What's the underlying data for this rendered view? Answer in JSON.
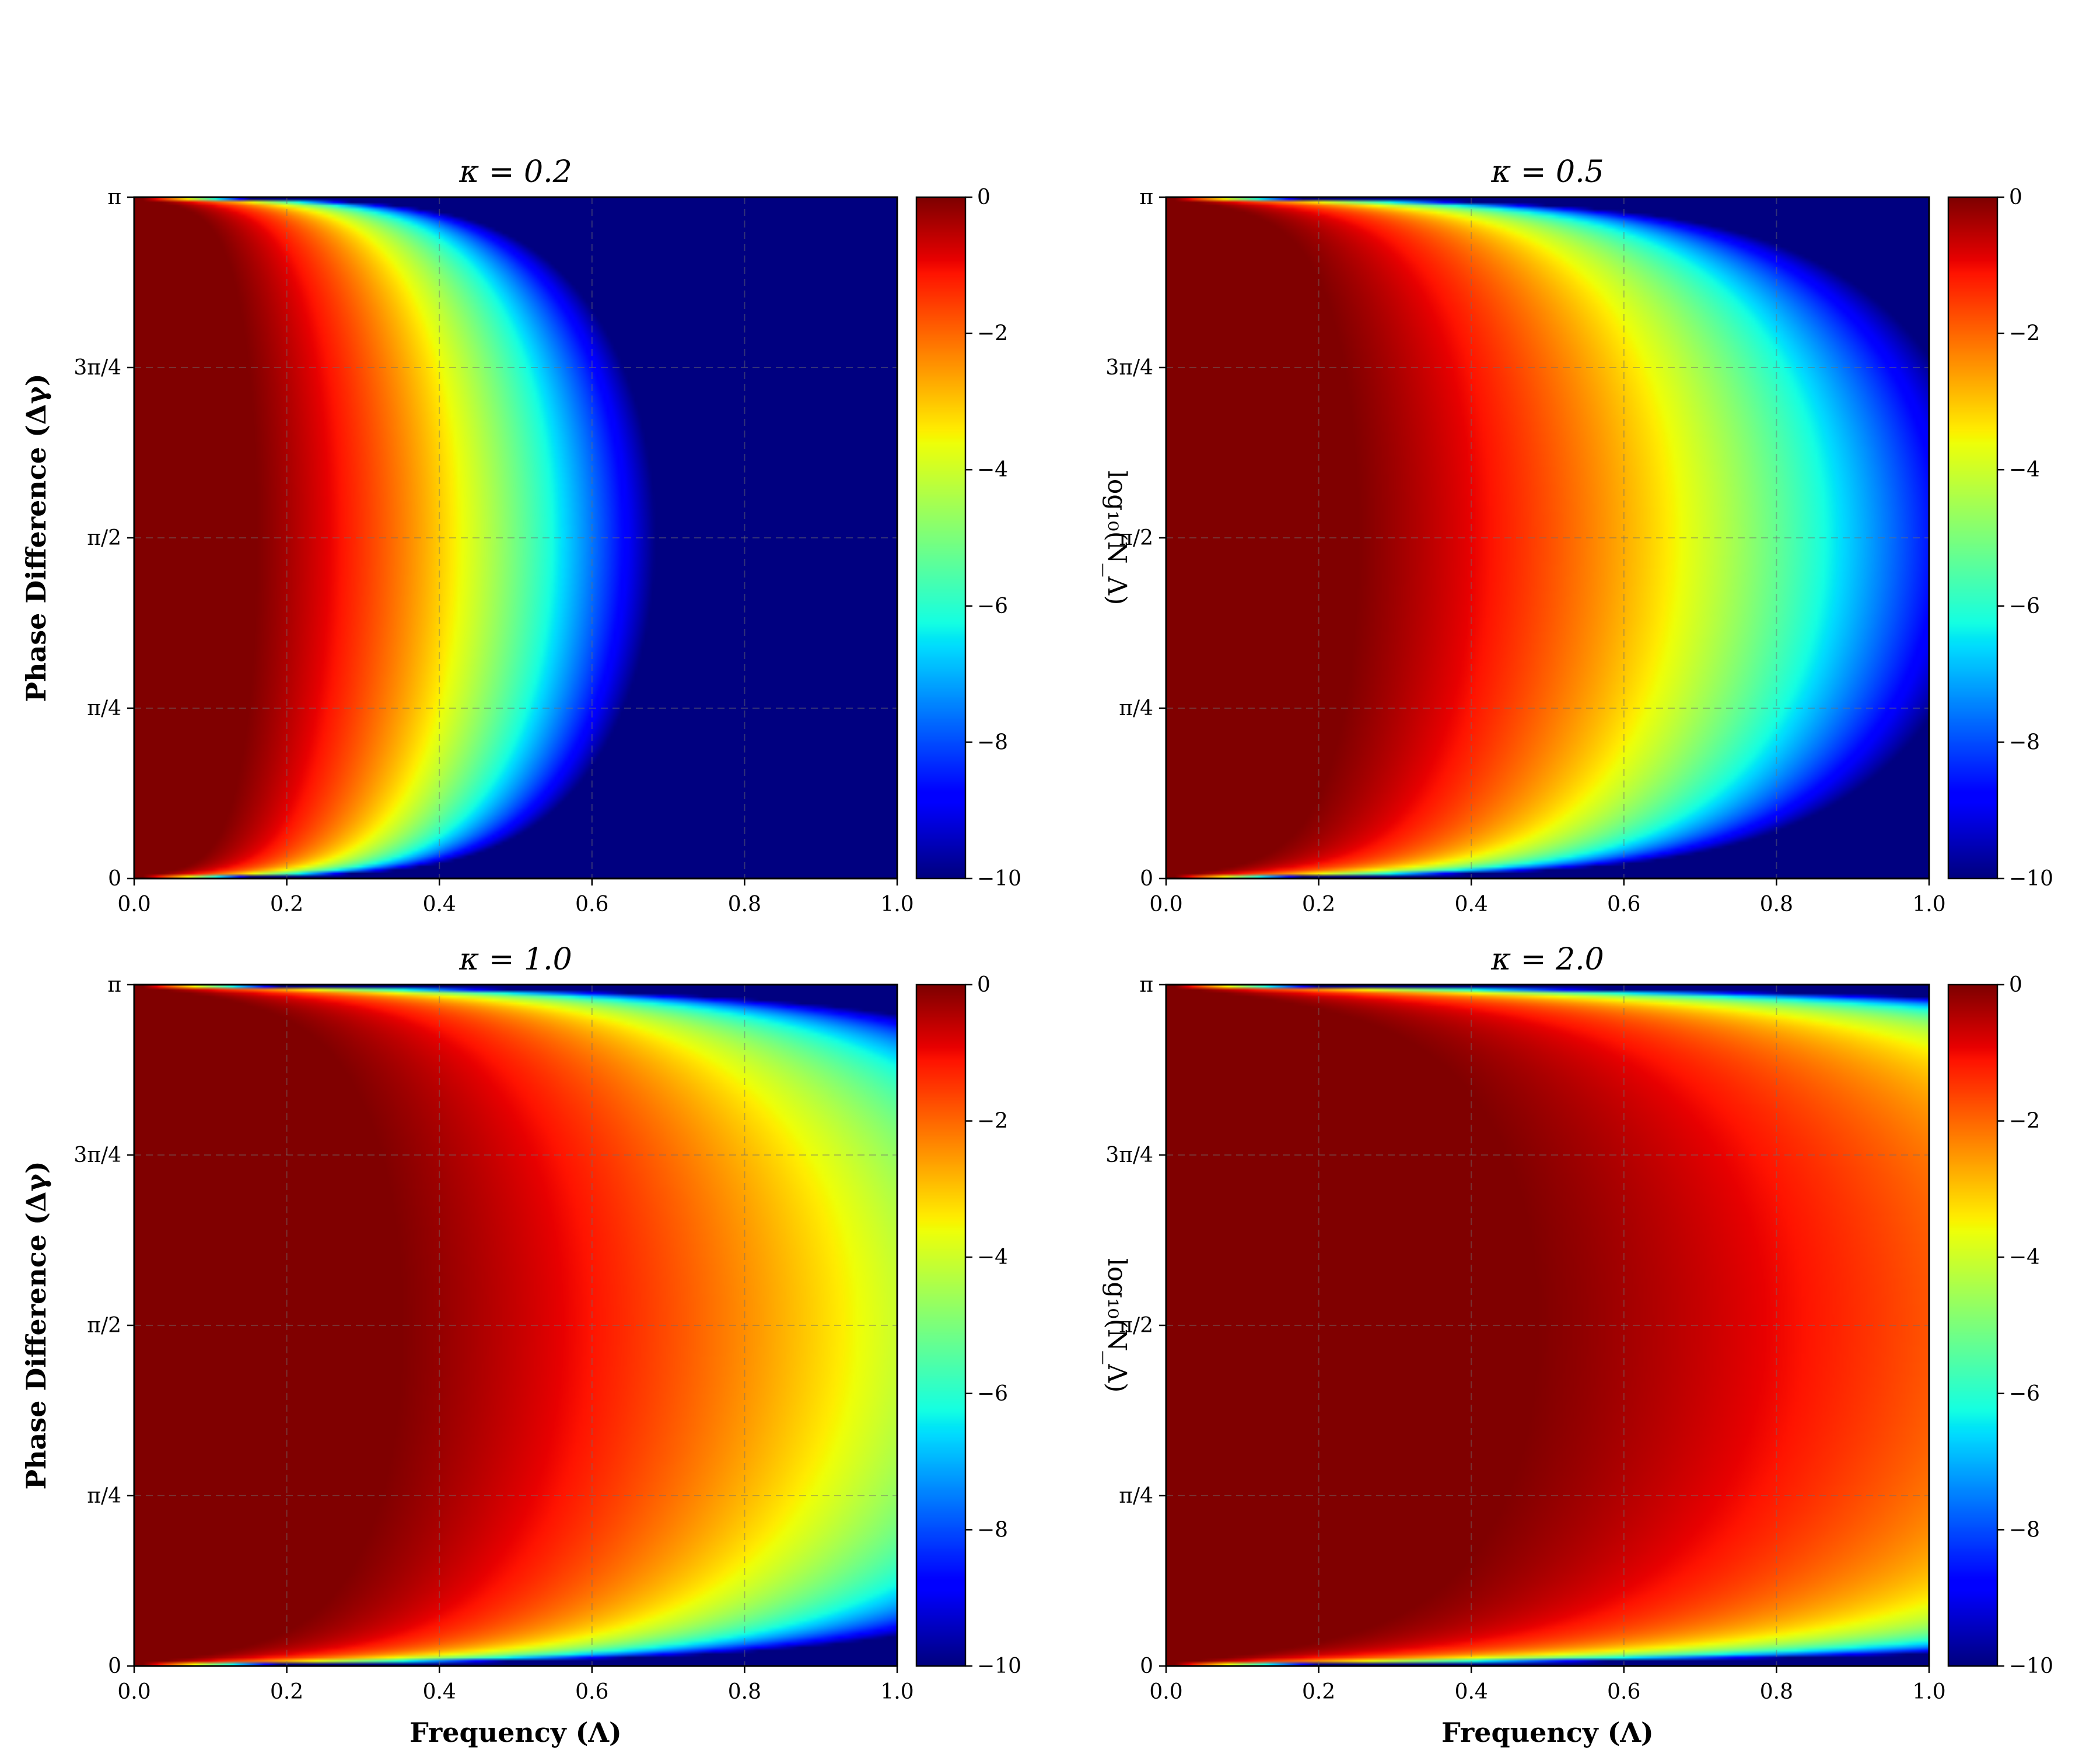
{
  "chart_data": {
    "type": "heatmap",
    "colormap": "jet",
    "grid": true,
    "panels": [
      {
        "title": "κ = 0.2",
        "kappa": 0.2,
        "show_xlabel": false,
        "show_ylabel": true
      },
      {
        "title": "κ = 0.5",
        "kappa": 0.5,
        "show_xlabel": false,
        "show_ylabel": false
      },
      {
        "title": "κ = 1.0",
        "kappa": 1.0,
        "show_xlabel": true,
        "show_ylabel": true
      },
      {
        "title": "κ = 2.0",
        "kappa": 2.0,
        "show_xlabel": true,
        "show_ylabel": false
      }
    ],
    "xlabel": "Frequency (Λ)",
    "ylabel": "Phase Difference (Δγ)",
    "xlim": [
      0.0,
      1.0
    ],
    "x_ticks": [
      "0.0",
      "0.2",
      "0.4",
      "0.6",
      "0.8",
      "1.0"
    ],
    "y_ticks": [
      "0",
      "π/4",
      "π/2",
      "3π/4",
      "π"
    ],
    "colorbar": {
      "label": "log₁₀(N_Λ)",
      "range": [
        -10,
        0
      ],
      "ticks": [
        "−10",
        "−8",
        "−6",
        "−4",
        "−2",
        "0"
      ]
    }
  }
}
